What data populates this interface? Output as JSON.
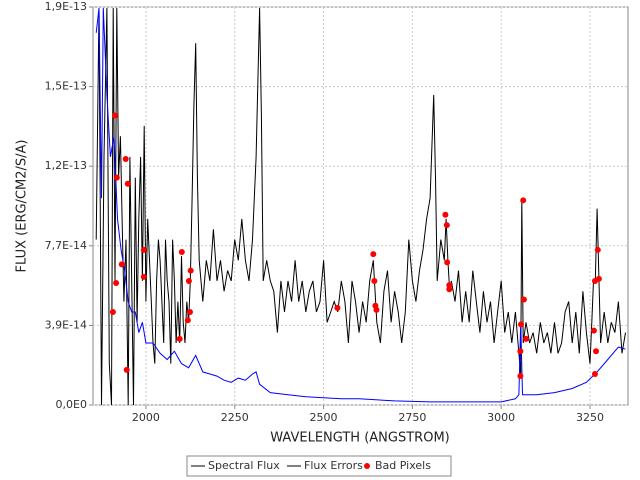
{
  "chart_data": {
    "type": "line",
    "x_label": "WAVELENGTH (ANGSTROM)",
    "y_label": "FLUX (ERG/CM2/S/A)",
    "xlim": [
      1851,
      3357
    ],
    "xticks": [
      2000,
      2250,
      2500,
      2750,
      3000,
      3250
    ],
    "ylim": [
      0,
      1.925e-13
    ],
    "yticks": [
      {
        "value": 0,
        "label": "0,0E0"
      },
      {
        "value": 3.85e-14,
        "label": "3,9E-14"
      },
      {
        "value": 7.7e-14,
        "label": "7,7E-14"
      },
      {
        "value": 1.155e-13,
        "label": "1,2E-13"
      },
      {
        "value": 1.54e-13,
        "label": "1,5E-13"
      },
      {
        "value": 1.925e-13,
        "label": "1,9E-13"
      }
    ],
    "grid": true,
    "series": [
      {
        "name": "Spectral Flux",
        "type": "line",
        "color": "#000000",
        "x": [
          1860,
          1868,
          1875,
          1882,
          1890,
          1897,
          1903,
          1908,
          1913,
          1918,
          1923,
          1928,
          1933,
          1938,
          1944,
          1950,
          1955,
          1960,
          1965,
          1970,
          1975,
          1980,
          1985,
          1990,
          1995,
          2000,
          2005,
          2010,
          2015,
          2020,
          2025,
          2030,
          2035,
          2040,
          2045,
          2050,
          2055,
          2060,
          2065,
          2070,
          2075,
          2080,
          2085,
          2090,
          2095,
          2100,
          2105,
          2110,
          2115,
          2120,
          2125,
          2130,
          2135,
          2140,
          2145,
          2150,
          2160,
          2170,
          2180,
          2190,
          2200,
          2210,
          2220,
          2230,
          2240,
          2250,
          2260,
          2270,
          2280,
          2290,
          2300,
          2310,
          2320,
          2325,
          2330,
          2340,
          2350,
          2360,
          2370,
          2380,
          2390,
          2400,
          2410,
          2420,
          2430,
          2440,
          2450,
          2460,
          2470,
          2480,
          2490,
          2500,
          2510,
          2520,
          2530,
          2540,
          2550,
          2560,
          2570,
          2580,
          2590,
          2600,
          2610,
          2620,
          2630,
          2640,
          2650,
          2660,
          2670,
          2680,
          2690,
          2700,
          2710,
          2720,
          2730,
          2740,
          2750,
          2760,
          2770,
          2780,
          2790,
          2800,
          2810,
          2815,
          2820,
          2830,
          2840,
          2845,
          2850,
          2855,
          2860,
          2870,
          2880,
          2890,
          2900,
          2910,
          2920,
          2930,
          2940,
          2950,
          2960,
          2970,
          2980,
          2990,
          3000,
          3010,
          3020,
          3030,
          3040,
          3050,
          3055,
          3058,
          3062,
          3070,
          3080,
          3090,
          3100,
          3110,
          3120,
          3130,
          3140,
          3150,
          3160,
          3170,
          3180,
          3190,
          3200,
          3210,
          3220,
          3230,
          3240,
          3250,
          3255,
          3260,
          3265,
          3270,
          3280,
          3290,
          3300,
          3310,
          3320,
          3330,
          3340,
          3350
        ],
        "values": [
          8e-14,
          1.92e-13,
          0,
          1.2e-13,
          1.92e-13,
          2e-14,
          0,
          1.92e-13,
          6e-14,
          1.92e-13,
          1.1e-13,
          1.3e-13,
          9e-14,
          5e-14,
          8e-14,
          0,
          1.2e-13,
          6e-14,
          0,
          1.1e-13,
          4e-14,
          9e-14,
          1.2e-13,
          6e-14,
          1.35e-13,
          5e-14,
          9e-14,
          7e-14,
          5e-14,
          3e-14,
          2e-14,
          6e-14,
          8e-14,
          7e-14,
          5e-14,
          3e-14,
          8e-14,
          6e-14,
          5e-14,
          2e-14,
          8e-14,
          6e-14,
          3e-14,
          5e-14,
          3e-14,
          7.2e-14,
          4e-14,
          3e-14,
          5e-14,
          4e-14,
          6e-14,
          1e-13,
          1.45e-13,
          1.75e-13,
          1.1e-13,
          7e-14,
          5e-14,
          7e-14,
          6e-14,
          8.5e-14,
          6e-14,
          7e-14,
          5.5e-14,
          6.5e-14,
          6e-14,
          8e-14,
          7e-14,
          9e-14,
          7e-14,
          6e-14,
          8e-14,
          1.2e-13,
          1.92e-13,
          1.4e-13,
          6e-14,
          7e-14,
          6e-14,
          5.5e-14,
          3.5e-14,
          6e-14,
          4.5e-14,
          6e-14,
          5e-14,
          7e-14,
          5e-14,
          6e-14,
          4.5e-14,
          5.5e-14,
          6e-14,
          4.5e-14,
          5e-14,
          7e-14,
          4e-14,
          4.5e-14,
          5e-14,
          4.5e-14,
          6e-14,
          5e-14,
          3e-14,
          6e-14,
          5e-14,
          3.5e-14,
          5e-14,
          4e-14,
          6e-14,
          7e-14,
          4e-14,
          3e-14,
          5.5e-14,
          6.5e-14,
          4e-14,
          5.5e-14,
          4.5e-14,
          3e-14,
          4.5e-14,
          8e-14,
          6e-14,
          5e-14,
          6.5e-14,
          7.5e-14,
          9e-14,
          1e-13,
          1.5e-13,
          1.1e-13,
          6e-14,
          8e-14,
          7e-14,
          9e-14,
          7e-14,
          5.5e-14,
          6e-14,
          5e-14,
          6.5e-14,
          4e-14,
          5.5e-14,
          4e-14,
          6.5e-14,
          5e-14,
          3.5e-14,
          5.5e-14,
          4e-14,
          5e-14,
          3e-14,
          4.5e-14,
          6e-14,
          3.5e-14,
          4.5e-14,
          3e-14,
          4.5e-14,
          2.5e-14,
          1.5e-14,
          1e-13,
          3e-14,
          4e-14,
          3e-14,
          3.5e-14,
          2.5e-14,
          4e-14,
          3e-14,
          3.5e-14,
          2.5e-14,
          4e-14,
          2.5e-14,
          3e-14,
          4.5e-14,
          5e-14,
          3e-14,
          4.5e-14,
          2.5e-14,
          5.5e-14,
          3.5e-14,
          2e-14,
          4e-14,
          6e-14,
          6e-14,
          9.5e-14,
          3e-14,
          4.5e-14,
          3e-14,
          4e-14,
          3.5e-14,
          5e-14,
          2.5e-14,
          3.5e-14
        ]
      },
      {
        "name": "Flux Errors",
        "type": "line",
        "color": "#0000ff",
        "x": [
          1860,
          1868,
          1875,
          1880,
          1890,
          1900,
          1910,
          1920,
          1930,
          1940,
          1950,
          1960,
          1970,
          1980,
          1990,
          2000,
          2020,
          2040,
          2060,
          2080,
          2100,
          2120,
          2140,
          2160,
          2180,
          2200,
          2220,
          2240,
          2260,
          2280,
          2300,
          2310,
          2320,
          2350,
          2400,
          2450,
          2500,
          2550,
          2600,
          2700,
          2800,
          2900,
          3000,
          3040,
          3050,
          3055,
          3060,
          3100,
          3150,
          3200,
          3240,
          3270,
          3300,
          3330,
          3350
        ],
        "values": [
          1.8e-13,
          1.92e-13,
          1e-13,
          1.92e-13,
          1.5e-13,
          1.2e-13,
          1.3e-13,
          9e-14,
          7.5e-14,
          6.5e-14,
          5e-14,
          4.5e-14,
          4.5e-14,
          3.5e-14,
          4e-14,
          3e-14,
          3e-14,
          2.5e-14,
          2.2e-14,
          2.6e-14,
          2e-14,
          1.8e-14,
          2.4e-14,
          1.6e-14,
          1.5e-14,
          1.4e-14,
          1.2e-14,
          1.1e-14,
          1.3e-14,
          1.2e-14,
          1.5e-14,
          1.6e-14,
          1e-14,
          6e-15,
          5e-15,
          4e-15,
          3.5e-15,
          3e-15,
          3e-15,
          2e-15,
          1.5e-15,
          1.5e-15,
          1.5e-15,
          3e-15,
          5e-15,
          4e-14,
          5e-15,
          5e-15,
          6e-15,
          8e-15,
          1.1e-14,
          1.6e-14,
          2.2e-14,
          2.8e-14,
          2.7e-14
        ]
      },
      {
        "name": "Bad Pixels",
        "type": "scatter",
        "color": "#ff0000",
        "x": [
          1913,
          1918,
          1932,
          1943,
          1949,
          1946,
          1916,
          1907,
          1994,
          1994,
          2101,
          2095,
          2118,
          2126,
          2121,
          2124,
          2539,
          2640,
          2643,
          2646,
          2649,
          2843,
          2847,
          2848,
          2854,
          2854,
          3062,
          3064,
          3056,
          3054,
          3054,
          3070,
          3261,
          3267,
          3264,
          3272,
          3275,
          3264
        ],
        "values": [
          1.4e-13,
          1.1e-13,
          6.8e-14,
          1.19e-13,
          1.07e-13,
          1.7e-14,
          5.9e-14,
          4.5e-14,
          7.5e-14,
          6.2e-14,
          7.4e-14,
          3.2e-14,
          4.1e-14,
          6.5e-14,
          6e-14,
          4.5e-14,
          4.7e-14,
          7.3e-14,
          6e-14,
          4.8e-14,
          4.6e-14,
          9.2e-14,
          8.7e-14,
          6.9e-14,
          5.6e-14,
          5.8e-14,
          9.9e-14,
          5.1e-14,
          3.9e-14,
          2.6e-14,
          1.4e-14,
          3.2e-14,
          3.6e-14,
          2.6e-14,
          1.5e-14,
          7.5e-14,
          6.1e-14,
          6e-14
        ]
      }
    ]
  }
}
